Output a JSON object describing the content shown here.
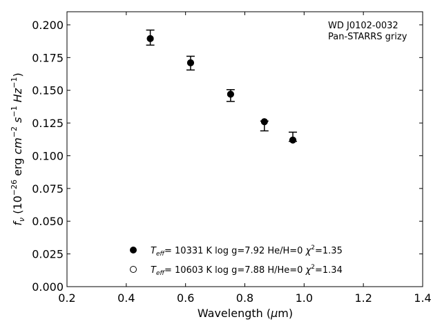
{
  "chart_data": {
    "type": "scatter",
    "annotation": [
      "WD J0102-0032",
      "Pan-STARRS grizy"
    ],
    "xlabel": "Wavelength (μm)",
    "ylabel": "f_ν (10^-26 erg cm^-2 s^-1 Hz^-1)",
    "xlim": [
      0.2,
      1.4
    ],
    "ylim": [
      0.0,
      0.21
    ],
    "xticks": [
      "0.2",
      "0.4",
      "0.6",
      "0.8",
      "1.0",
      "1.2",
      "1.4"
    ],
    "yticks": [
      "0.000",
      "0.025",
      "0.050",
      "0.075",
      "0.100",
      "0.125",
      "0.150",
      "0.175",
      "0.200"
    ],
    "grid": false,
    "legend_position": "lower-center",
    "observed": {
      "x": [
        0.481,
        0.617,
        0.752,
        0.866,
        0.962
      ],
      "y": [
        0.1895,
        0.171,
        0.1465,
        0.123,
        0.114
      ],
      "err_lo": [
        0.1845,
        0.1655,
        0.1415,
        0.119,
        0.111
      ],
      "err_hi": [
        0.196,
        0.176,
        0.1505,
        0.1265,
        0.118
      ]
    },
    "series": [
      {
        "name": "T_eff= 10331 K  log g=7.92  He/H=0  χ^2=1.35",
        "marker": "filled-circle",
        "color": "#000000",
        "x": [
          0.481,
          0.617,
          0.752,
          0.866,
          0.962
        ],
        "y": [
          0.1895,
          0.171,
          0.147,
          0.126,
          0.112
        ]
      },
      {
        "name": "T_eff= 10603 K  log g=7.88  H/He=0  χ^2=1.34",
        "marker": "open-circle",
        "color": "#000000",
        "x": [
          0.481,
          0.617,
          0.752,
          0.866,
          0.962
        ],
        "y": [
          0.1895,
          0.171,
          0.147,
          0.126,
          0.112
        ]
      }
    ]
  }
}
